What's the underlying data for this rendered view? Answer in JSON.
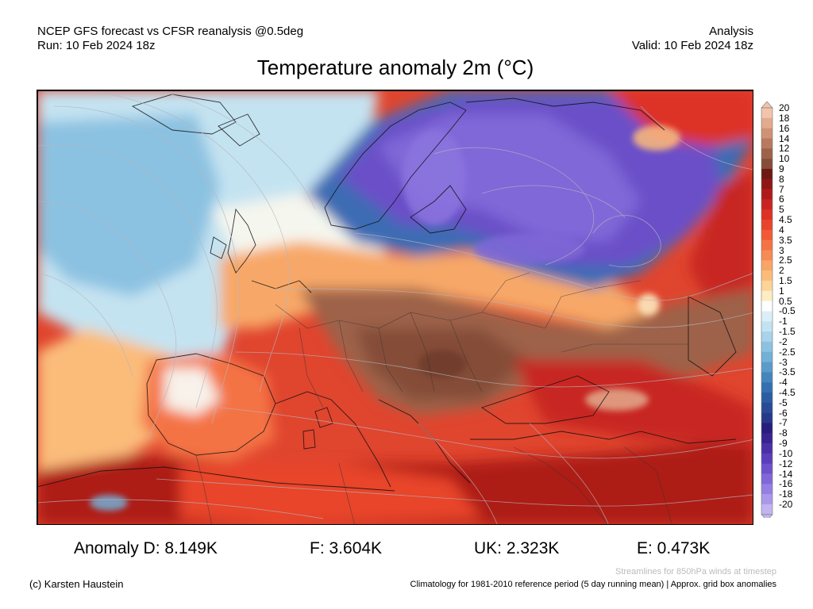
{
  "header": {
    "left_line1": "NCEP GFS forecast vs CFSR reanalysis @0.5deg",
    "left_line2": "Run: 10 Feb 2024 18z",
    "right_line1": "Analysis",
    "right_line2": "Valid: 10 Feb 2024 18z"
  },
  "title": "Temperature anomaly 2m (°C)",
  "colorbar": {
    "labels": [
      "20",
      "18",
      "16",
      "14",
      "12",
      "10",
      "9",
      "8",
      "7",
      "6",
      "5",
      "4.5",
      "4",
      "3.5",
      "3",
      "2.5",
      "2",
      "1.5",
      "1",
      "0.5",
      "-0.5",
      "-1",
      "-1.5",
      "-2",
      "-2.5",
      "-3",
      "-3.5",
      "-4",
      "-4.5",
      "-5",
      "-6",
      "-7",
      "-8",
      "-9",
      "-10",
      "-12",
      "-14",
      "-16",
      "-18",
      "-20"
    ],
    "colors": [
      "#f2c4ac",
      "#e3aa8d",
      "#cf9274",
      "#b87a5f",
      "#9d624a",
      "#854d39",
      "#6e1813",
      "#8e1715",
      "#ae1a18",
      "#c82522",
      "#dd3126",
      "#e8442c",
      "#f05b36",
      "#f47344",
      "#f68b55",
      "#f9a566",
      "#fbbc7a",
      "#fdd497",
      "#feedc3",
      "#ffffff",
      "#dceff8",
      "#c4e3f1",
      "#a8d3ea",
      "#8cc2e1",
      "#73b0d6",
      "#5b9bcb",
      "#4585be",
      "#3470b1",
      "#2a5da3",
      "#274b96",
      "#26388a",
      "#271d7e",
      "#38238f",
      "#4a30a6",
      "#5a3ebb",
      "#6d52cb",
      "#8068d8",
      "#957fe2",
      "#aa98ea",
      "#c3b4f1"
    ],
    "scale": "nonlinear (°C)"
  },
  "stats": {
    "D": "Anomaly D: 8.149K",
    "F": "F: 3.604K",
    "UK": "UK: 2.323K",
    "E": "E: 0.473K"
  },
  "footer": {
    "streamlines_note": "Streamlines for 850hPa winds at timestep",
    "copyright": "(c) Karsten Haustein",
    "climatology": "Climatology for 1981-2010 reference period (5 day running mean) | Approx. grid box anomalies"
  }
}
